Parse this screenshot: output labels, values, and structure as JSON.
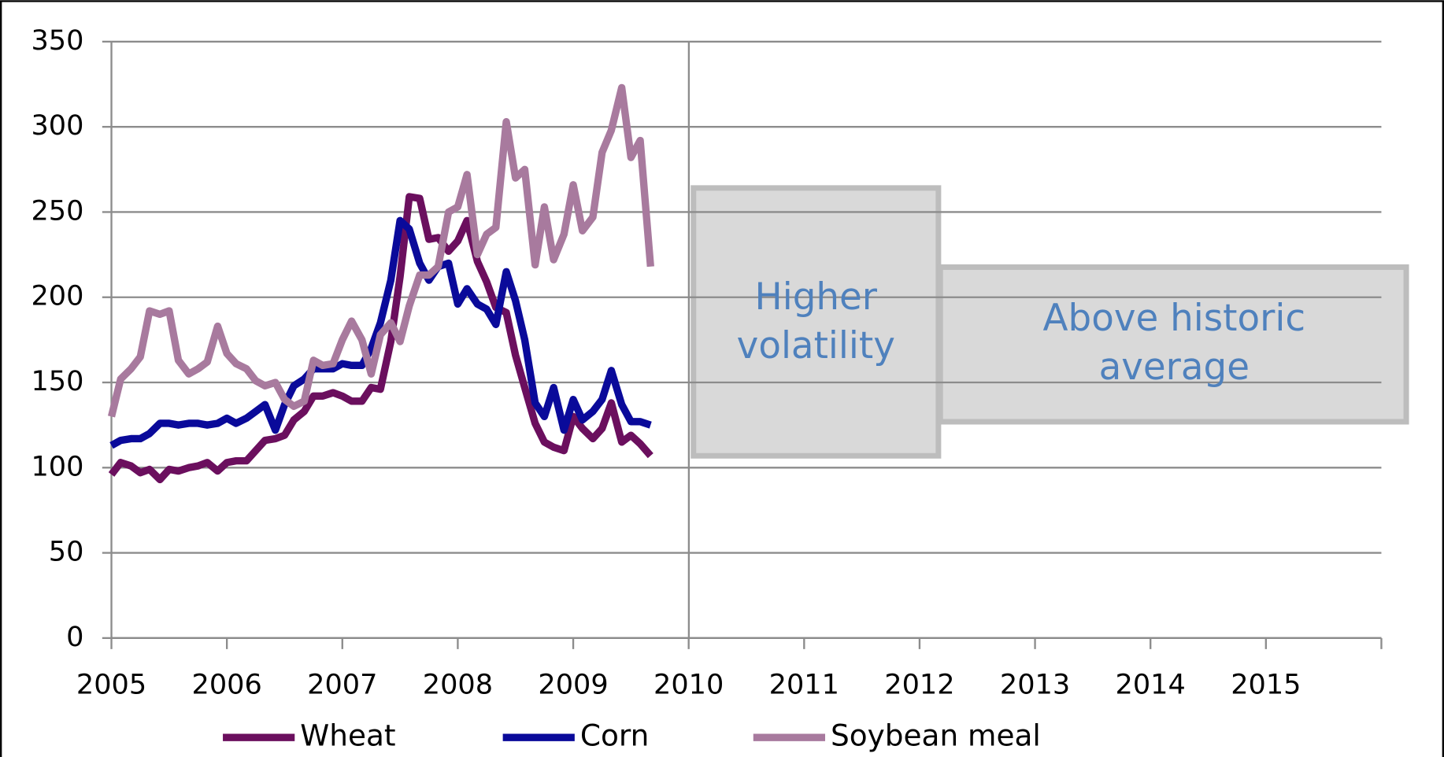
{
  "chart_data": {
    "type": "line",
    "x": [
      2005,
      2005.08,
      2005.17,
      2005.25,
      2005.33,
      2005.42,
      2005.5,
      2005.58,
      2005.67,
      2005.75,
      2005.83,
      2005.92,
      2006,
      2006.08,
      2006.17,
      2006.25,
      2006.33,
      2006.42,
      2006.5,
      2006.58,
      2006.67,
      2006.75,
      2006.83,
      2006.92,
      2007,
      2007.08,
      2007.17,
      2007.25,
      2007.33,
      2007.42,
      2007.5,
      2007.58,
      2007.67,
      2007.75,
      2007.83,
      2007.92,
      2008,
      2008.08,
      2008.17,
      2008.25,
      2008.33,
      2008.42,
      2008.5,
      2008.58,
      2008.67,
      2008.75,
      2008.83,
      2008.92,
      2009,
      2009.08,
      2009.17,
      2009.25,
      2009.33,
      2009.42,
      2009.5,
      2009.58,
      2009.67
    ],
    "series": [
      {
        "name": "Wheat",
        "color": "#6b0f5e",
        "values": [
          96,
          103,
          101,
          97,
          99,
          93,
          99,
          98,
          100,
          101,
          103,
          98,
          103,
          104,
          104,
          110,
          116,
          117,
          119,
          128,
          133,
          142,
          142,
          144,
          142,
          139,
          139,
          147,
          146,
          174,
          212,
          259,
          258,
          234,
          235,
          227,
          233,
          245,
          221,
          209,
          194,
          191,
          166,
          147,
          126,
          115,
          112,
          110,
          130,
          123,
          117,
          123,
          138,
          115,
          119,
          114,
          107
        ]
      },
      {
        "name": "Corn",
        "color": "#0a0a9a",
        "values": [
          113,
          116,
          117,
          117,
          120,
          126,
          126,
          125,
          126,
          126,
          125,
          126,
          129,
          126,
          129,
          133,
          137,
          122,
          137,
          148,
          152,
          158,
          158,
          158,
          161,
          160,
          160,
          170,
          185,
          210,
          245,
          240,
          220,
          210,
          218,
          220,
          196,
          205,
          196,
          193,
          184,
          215,
          198,
          175,
          138,
          130,
          147,
          122,
          140,
          128,
          133,
          140,
          157,
          137,
          127,
          127,
          125
        ]
      },
      {
        "name": "Soybean meal",
        "color": "#a87a9e",
        "values": [
          130,
          152,
          158,
          165,
          192,
          190,
          192,
          163,
          155,
          158,
          162,
          183,
          167,
          161,
          158,
          151,
          148,
          150,
          140,
          136,
          139,
          163,
          160,
          161,
          175,
          186,
          175,
          155,
          178,
          185,
          174,
          195,
          213,
          213,
          218,
          250,
          253,
          272,
          225,
          237,
          241,
          303,
          270,
          275,
          219,
          253,
          222,
          237,
          266,
          239,
          247,
          285,
          298,
          323,
          282,
          292,
          218
        ]
      }
    ],
    "xlim": [
      2005,
      2016
    ],
    "xticks": [
      2005,
      2006,
      2007,
      2008,
      2009,
      2010,
      2011,
      2012,
      2013,
      2014,
      2015
    ],
    "ylim": [
      0,
      350
    ],
    "yticks": [
      0,
      50,
      100,
      150,
      200,
      250,
      300,
      350
    ],
    "grid": true,
    "annotations": [
      {
        "lines": [
          "Higher",
          "volatility"
        ]
      },
      {
        "lines": [
          "Above historic",
          "average"
        ]
      }
    ]
  }
}
